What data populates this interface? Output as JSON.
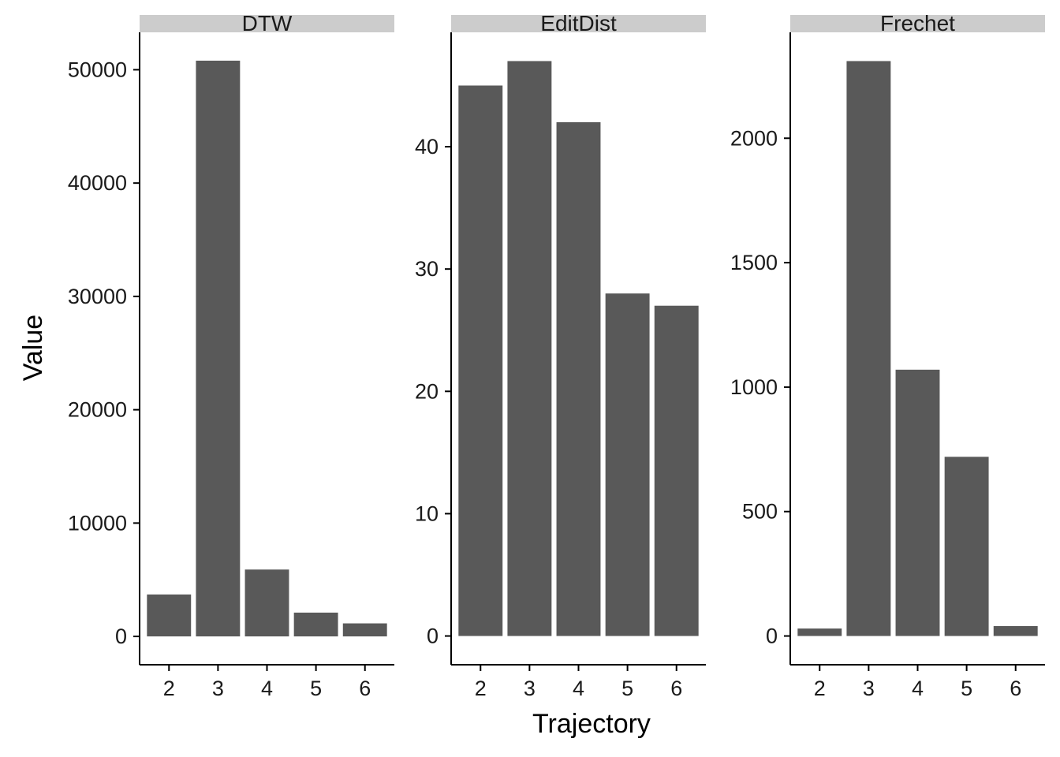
{
  "chart_data": {
    "type": "bar",
    "xlabel": "Trajectory",
    "ylabel": "Value",
    "categories": [
      "2",
      "3",
      "4",
      "5",
      "6"
    ],
    "bar_color": "#595959",
    "strip_color": "#cccccc",
    "grid": false,
    "facets": [
      {
        "name": "DTW",
        "values": [
          3700,
          50800,
          5900,
          2100,
          1150
        ],
        "ylim": [
          -2500,
          53300
        ],
        "yticks": [
          0,
          10000,
          20000,
          30000,
          40000,
          50000
        ]
      },
      {
        "name": "EditDist",
        "values": [
          45,
          47,
          42,
          28,
          27
        ],
        "ylim": [
          -2.35,
          49.35
        ],
        "yticks": [
          0,
          10,
          20,
          30,
          40
        ]
      },
      {
        "name": "Frechet",
        "values": [
          30,
          2310,
          1070,
          720,
          40
        ],
        "ylim": [
          -115.5,
          2425.5
        ],
        "yticks": [
          0,
          500,
          1000,
          1500,
          2000
        ]
      }
    ]
  }
}
